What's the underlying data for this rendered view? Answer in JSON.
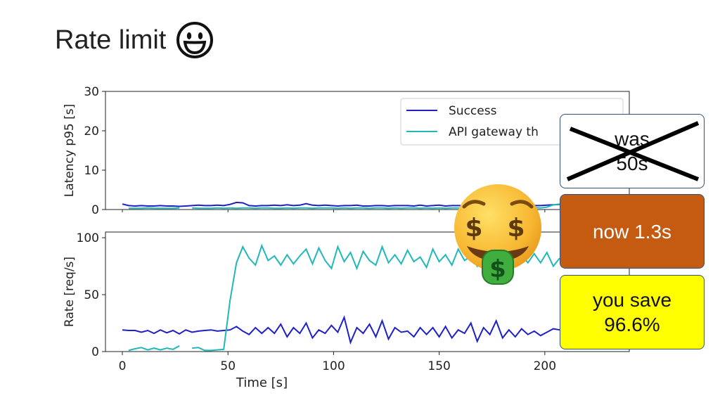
{
  "slide": {
    "title": "Rate limit"
  },
  "callouts": {
    "was_line1": "was",
    "was_line2": "50s",
    "now": "now 1.3s",
    "save_line1": "you save",
    "save_line2": "96.6%"
  },
  "icons": {
    "title_icon": "grinning-face-icon",
    "overlay_icon": "money-mouth-face-icon"
  },
  "colors": {
    "success": "#1f1fc8",
    "gateway": "#20b8b8",
    "now_box": "#c55a11",
    "save_box": "#ffff00"
  },
  "chart_data": [
    {
      "type": "line",
      "ylabel": "Latency p95 [s]",
      "xlabel": "",
      "xlim": [
        -8,
        240
      ],
      "ylim": [
        0,
        30
      ],
      "yticks": [
        0,
        10,
        20,
        30
      ],
      "legend": {
        "placement": "top-right",
        "entries": [
          "Success",
          "API gateway th"
        ]
      },
      "series": [
        {
          "name": "Success",
          "x": [
            0,
            3,
            6,
            9,
            12,
            15,
            18,
            21,
            24,
            27,
            30,
            33,
            36,
            39,
            42,
            45,
            48,
            51,
            54,
            57,
            60,
            63,
            66,
            69,
            72,
            75,
            78,
            81,
            84,
            87,
            90,
            93,
            96,
            99,
            102,
            105,
            108,
            111,
            114,
            117,
            120,
            123,
            126,
            129,
            132,
            135,
            138,
            141,
            144,
            147,
            150,
            153,
            156,
            159,
            162,
            165,
            168,
            171,
            174,
            177,
            180,
            183,
            186,
            189,
            192,
            195,
            198,
            201,
            204,
            207
          ],
          "y": [
            1.4,
            1.0,
            0.9,
            1.0,
            0.9,
            0.9,
            1.0,
            0.9,
            0.9,
            0.8,
            0.9,
            1.0,
            1.1,
            1.0,
            1.0,
            1.1,
            1.0,
            1.3,
            1.8,
            1.7,
            1.0,
            0.9,
            1.0,
            1.0,
            1.1,
            1.0,
            1.2,
            1.0,
            1.1,
            1.5,
            1.1,
            1.0,
            1.1,
            1.0,
            0.9,
            1.0,
            1.0,
            1.1,
            0.9,
            0.9,
            1.0,
            1.0,
            0.9,
            1.0,
            1.0,
            1.0,
            0.9,
            1.1,
            0.9,
            1.0,
            1.1,
            0.9,
            1.0,
            1.0,
            1.0,
            0.9,
            1.0,
            1.1,
            1.0,
            1.0,
            0.9,
            1.0,
            1.0,
            1.0,
            1.1,
            1.0,
            1.0,
            1.1,
            1.2,
            1.3
          ]
        },
        {
          "name": "API gateway th",
          "x": [
            3,
            6,
            9,
            12,
            15,
            18,
            21,
            24,
            27,
            33,
            36,
            39,
            42,
            45,
            48,
            51,
            54,
            57,
            60,
            63,
            66,
            69,
            72,
            75,
            78,
            81,
            84,
            87,
            90,
            93,
            96,
            99,
            102,
            105,
            108,
            111,
            114,
            117,
            120,
            123,
            126,
            129,
            132,
            135,
            138,
            141,
            144,
            147,
            150,
            153,
            156,
            159,
            162,
            165,
            168,
            171,
            174,
            177,
            180,
            183,
            186,
            189,
            192,
            195,
            198,
            201,
            204,
            207
          ],
          "y": [
            0.3,
            0.3,
            0.3,
            0.4,
            0.3,
            0.3,
            0.3,
            0.3,
            0.4,
            0.4,
            0.3,
            0.3,
            0.3,
            0.4,
            0.3,
            0.4,
            0.3,
            0.4,
            0.4,
            0.3,
            0.4,
            0.4,
            0.3,
            0.3,
            0.4,
            0.3,
            0.4,
            0.4,
            0.3,
            0.4,
            0.4,
            0.4,
            0.3,
            0.4,
            0.3,
            0.4,
            0.4,
            0.3,
            0.4,
            0.4,
            0.3,
            0.4,
            0.3,
            0.4,
            0.4,
            0.3,
            0.4,
            0.3,
            0.4,
            0.3,
            0.4,
            0.4,
            0.3,
            0.4,
            0.4,
            0.3,
            0.4,
            0.4,
            0.4,
            0.3,
            0.4,
            0.4,
            0.3,
            0.5,
            0.4,
            0.6,
            1.2,
            1.4
          ]
        }
      ]
    },
    {
      "type": "line",
      "ylabel": "Rate [req/s]",
      "xlabel": "Time [s]",
      "xlim": [
        -8,
        240
      ],
      "ylim": [
        0,
        105
      ],
      "xticks": [
        0,
        50,
        100,
        150,
        200
      ],
      "yticks": [
        0,
        50,
        100
      ],
      "series": [
        {
          "name": "Success",
          "x": [
            0,
            3,
            6,
            9,
            12,
            15,
            18,
            21,
            24,
            27,
            30,
            33,
            36,
            39,
            42,
            45,
            48,
            51,
            54,
            57,
            60,
            63,
            66,
            69,
            72,
            75,
            78,
            81,
            84,
            87,
            90,
            93,
            96,
            99,
            102,
            105,
            108,
            111,
            114,
            117,
            120,
            123,
            126,
            129,
            132,
            135,
            138,
            141,
            144,
            147,
            150,
            153,
            156,
            159,
            162,
            165,
            168,
            171,
            174,
            177,
            180,
            183,
            186,
            189,
            192,
            195,
            198,
            201,
            204,
            207
          ],
          "y": [
            19,
            18.5,
            18.5,
            17,
            18.5,
            16,
            19,
            16.5,
            18.5,
            15.5,
            19,
            17,
            18,
            18.5,
            19,
            18,
            18.5,
            19,
            22,
            18,
            15,
            21,
            16,
            21,
            16,
            24,
            13,
            21,
            16,
            25,
            12,
            19,
            16,
            23,
            17,
            30,
            8,
            21,
            16,
            24,
            13,
            27,
            11,
            21,
            17,
            18,
            13,
            21,
            15,
            21,
            13,
            22,
            12,
            19,
            16,
            25,
            9,
            21,
            15,
            27,
            12,
            19,
            13,
            20,
            15,
            18,
            14,
            17,
            20,
            19
          ]
        },
        {
          "name": "API gateway th",
          "x": [
            3,
            6,
            9,
            12,
            15,
            18,
            21,
            24,
            27,
            33,
            36,
            39,
            42,
            45,
            48,
            51,
            54,
            57,
            60,
            63,
            66,
            69,
            72,
            75,
            78,
            81,
            84,
            87,
            90,
            93,
            96,
            99,
            102,
            105,
            108,
            111,
            114,
            117,
            120,
            123,
            126,
            129,
            132,
            135,
            138,
            141,
            144,
            147,
            150,
            153,
            156,
            159,
            162,
            165,
            168,
            171,
            174,
            177,
            180,
            183,
            186,
            189,
            192,
            195,
            198,
            201,
            204,
            207
          ],
          "y": [
            1,
            2.5,
            3.5,
            1.5,
            3,
            1.5,
            3,
            2,
            5,
            3,
            3.5,
            1,
            1,
            1.5,
            2,
            45,
            78,
            92,
            82,
            76,
            93,
            80,
            84,
            76,
            85,
            77,
            84,
            90,
            77,
            91,
            80,
            73,
            92,
            79,
            87,
            73,
            88,
            80,
            76,
            92,
            78,
            85,
            77,
            89,
            79,
            83,
            74,
            90,
            79,
            85,
            76,
            90,
            80,
            84,
            75,
            91,
            78,
            86,
            77,
            88,
            80,
            85,
            78,
            86,
            78,
            87,
            75,
            82
          ]
        }
      ]
    }
  ]
}
